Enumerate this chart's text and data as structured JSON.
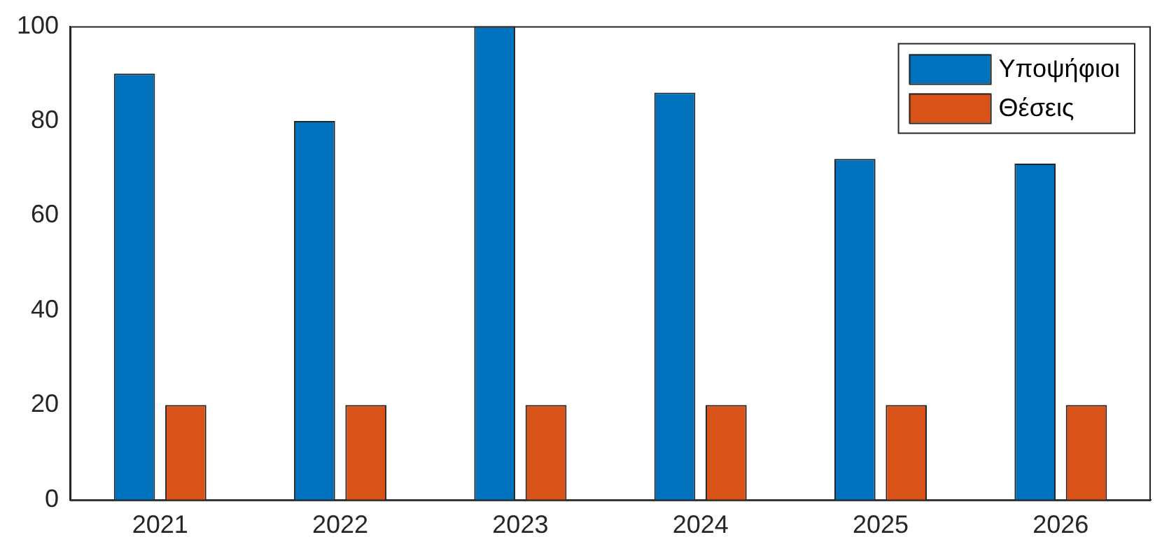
{
  "chart_data": {
    "type": "bar",
    "categories": [
      "2021",
      "2022",
      "2023",
      "2024",
      "2025",
      "2026"
    ],
    "series": [
      {
        "name": "Υποψήφιοι",
        "color": "#0072bd",
        "values": [
          90,
          80,
          100,
          86,
          72,
          71
        ]
      },
      {
        "name": "Θέσεις",
        "color": "#d95319",
        "values": [
          20,
          20,
          20,
          20,
          20,
          20
        ]
      }
    ],
    "ylim": [
      0,
      100
    ],
    "yticks": [
      0,
      20,
      40,
      60,
      80,
      100
    ],
    "grid": false,
    "legend": "top right"
  }
}
